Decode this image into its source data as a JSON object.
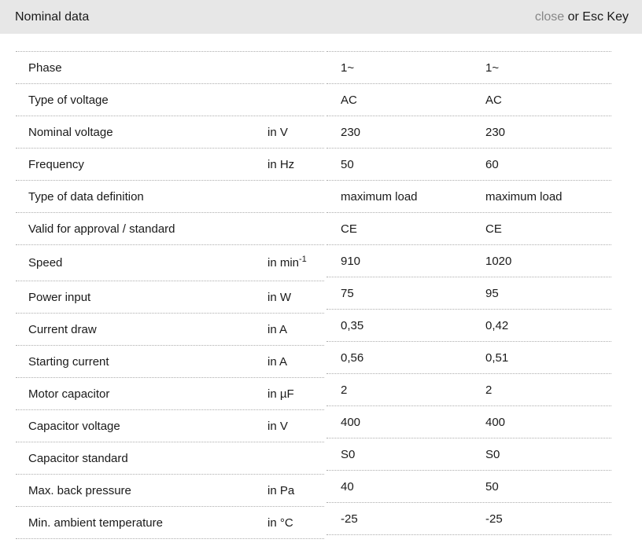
{
  "header": {
    "title": "Nominal data",
    "close_label": "close",
    "close_suffix": " or Esc Key"
  },
  "colors": {
    "header_bg": "#e7e7e7",
    "text": "#1a1a1a",
    "close_link": "#878787",
    "divider_dotted": "#adadad"
  },
  "table": {
    "rows": [
      {
        "label": "Phase",
        "unit": "",
        "unit_sup": "",
        "values": [
          "1~",
          "1~"
        ]
      },
      {
        "label": "Type of voltage",
        "unit": "",
        "unit_sup": "",
        "values": [
          "AC",
          "AC"
        ]
      },
      {
        "label": "Nominal voltage",
        "unit": "in V",
        "unit_sup": "",
        "values": [
          "230",
          "230"
        ]
      },
      {
        "label": "Frequency",
        "unit": "in Hz",
        "unit_sup": "",
        "values": [
          "50",
          "60"
        ]
      },
      {
        "label": "Type of data definition",
        "unit": "",
        "unit_sup": "",
        "values": [
          "maximum load",
          "maximum load"
        ]
      },
      {
        "label": "Valid for approval / standard",
        "unit": "",
        "unit_sup": "",
        "values": [
          "CE",
          "CE"
        ]
      },
      {
        "label": "Speed",
        "unit": "in min",
        "unit_sup": "-1",
        "values": [
          "910",
          "1020"
        ],
        "tall": true
      },
      {
        "label": "Power input",
        "unit": "in W",
        "unit_sup": "",
        "values": [
          "75",
          "95"
        ]
      },
      {
        "label": "Current draw",
        "unit": "in A",
        "unit_sup": "",
        "values": [
          "0,35",
          "0,42"
        ]
      },
      {
        "label": "Starting current",
        "unit": "in A",
        "unit_sup": "",
        "values": [
          "0,56",
          "0,51"
        ]
      },
      {
        "label": "Motor capacitor",
        "unit": "in µF",
        "unit_sup": "",
        "values": [
          "2",
          "2"
        ]
      },
      {
        "label": "Capacitor voltage",
        "unit": "in V",
        "unit_sup": "",
        "values": [
          "400",
          "400"
        ]
      },
      {
        "label": "Capacitor standard",
        "unit": "",
        "unit_sup": "",
        "values": [
          "S0",
          "S0"
        ]
      },
      {
        "label": "Max. back pressure",
        "unit": "in Pa",
        "unit_sup": "",
        "values": [
          "40",
          "50"
        ]
      },
      {
        "label": "Min. ambient temperature",
        "unit": "in °C",
        "unit_sup": "",
        "values": [
          "-25",
          "-25"
        ]
      }
    ]
  }
}
